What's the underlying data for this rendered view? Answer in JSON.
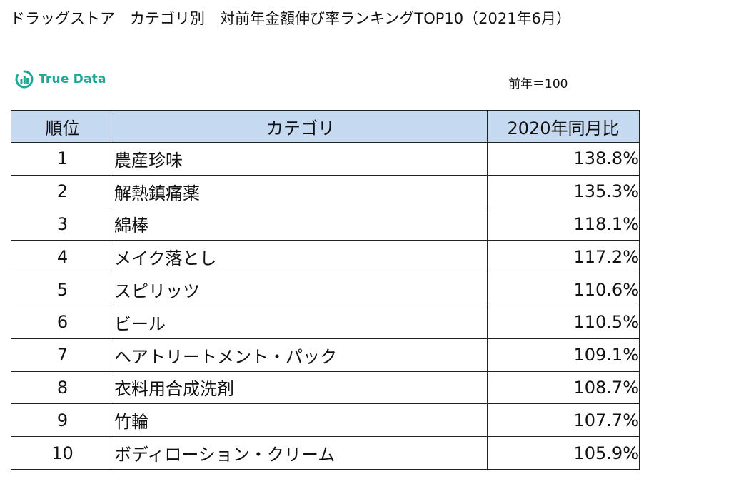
{
  "title": "ドラッグストア　カテゴリ別　対前年金額伸び率ランキングTOP10（2021年6月）",
  "logo": {
    "text": "True Data",
    "icon": "bar-chart-ring-icon",
    "color": "#1fa894"
  },
  "note": "前年＝100",
  "header_color": "#c5d9f1",
  "chart_data": {
    "type": "table",
    "title": "ドラッグストア　カテゴリ別　対前年金額伸び率ランキングTOP10（2021年6月）",
    "columns": [
      "順位",
      "カテゴリ",
      "2020年同月比"
    ],
    "rows": [
      [
        "1",
        "農産珍味",
        "138.8%"
      ],
      [
        "2",
        "解熱鎮痛薬",
        "135.3%"
      ],
      [
        "3",
        "綿棒",
        "118.1%"
      ],
      [
        "4",
        "メイク落とし",
        "117.2%"
      ],
      [
        "5",
        "スピリッツ",
        "110.6%"
      ],
      [
        "6",
        "ビール",
        "110.5%"
      ],
      [
        "7",
        "ヘアトリートメント・パック",
        "109.1%"
      ],
      [
        "8",
        "衣料用合成洗剤",
        "108.7%"
      ],
      [
        "9",
        "竹輪",
        "107.7%"
      ],
      [
        "10",
        "ボディローション・クリーム",
        "105.9%"
      ]
    ],
    "values": [
      138.8,
      135.3,
      118.1,
      117.2,
      110.6,
      110.5,
      109.1,
      108.7,
      107.7,
      105.9
    ]
  }
}
